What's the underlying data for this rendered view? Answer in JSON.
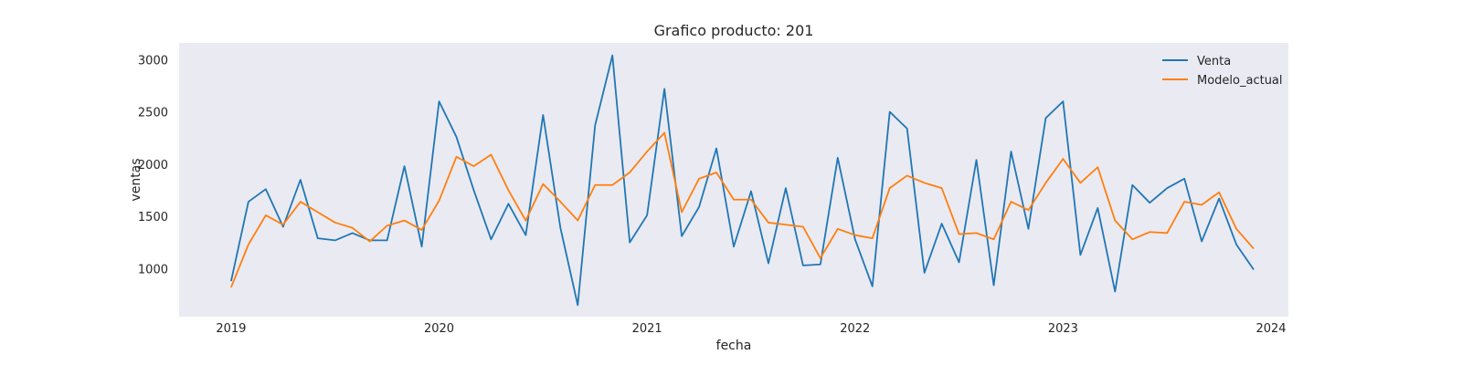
{
  "chart_data": {
    "type": "line",
    "title": "Grafico producto: 201",
    "xlabel": "fecha",
    "ylabel": "ventas",
    "x": [
      "2019-01",
      "2019-02",
      "2019-03",
      "2019-04",
      "2019-05",
      "2019-06",
      "2019-07",
      "2019-08",
      "2019-09",
      "2019-10",
      "2019-11",
      "2019-12",
      "2020-01",
      "2020-02",
      "2020-03",
      "2020-04",
      "2020-05",
      "2020-06",
      "2020-07",
      "2020-08",
      "2020-09",
      "2020-10",
      "2020-11",
      "2020-12",
      "2021-01",
      "2021-02",
      "2021-03",
      "2021-04",
      "2021-05",
      "2021-06",
      "2021-07",
      "2021-08",
      "2021-09",
      "2021-10",
      "2021-11",
      "2021-12",
      "2022-01",
      "2022-02",
      "2022-03",
      "2022-04",
      "2022-05",
      "2022-06",
      "2022-07",
      "2022-08",
      "2022-09",
      "2022-10",
      "2022-11",
      "2022-12",
      "2023-01",
      "2023-02",
      "2023-03",
      "2023-04",
      "2023-05",
      "2023-06",
      "2023-07",
      "2023-08",
      "2023-09",
      "2023-10",
      "2023-11",
      "2023-12"
    ],
    "series": [
      {
        "name": "Venta",
        "color": "#1f77b4",
        "values": [
          880,
          1640,
          1760,
          1400,
          1850,
          1290,
          1270,
          1340,
          1270,
          1270,
          1980,
          1210,
          2600,
          2260,
          1750,
          1280,
          1620,
          1320,
          2470,
          1390,
          650,
          2370,
          3040,
          1250,
          1510,
          2720,
          1310,
          1590,
          2150,
          1210,
          1740,
          1050,
          1770,
          1030,
          1040,
          2060,
          1280,
          830,
          2500,
          2340,
          960,
          1430,
          1060,
          2040,
          840,
          2120,
          1380,
          2440,
          2600,
          1130,
          1580,
          780,
          1800,
          1630,
          1770,
          1860,
          1260,
          1670,
          1230,
          990
        ]
      },
      {
        "name": "Modelo_actual",
        "color": "#ff7f0e",
        "values": [
          820,
          1230,
          1510,
          1420,
          1640,
          1540,
          1440,
          1390,
          1260,
          1410,
          1460,
          1370,
          1650,
          2070,
          1980,
          2090,
          1750,
          1460,
          1810,
          1640,
          1460,
          1800,
          1800,
          1920,
          2120,
          2300,
          1540,
          1860,
          1920,
          1660,
          1660,
          1440,
          1420,
          1400,
          1100,
          1380,
          1320,
          1290,
          1770,
          1890,
          1820,
          1770,
          1330,
          1340,
          1280,
          1640,
          1560,
          1820,
          2050,
          1820,
          1970,
          1460,
          1280,
          1350,
          1340,
          1640,
          1610,
          1730,
          1380,
          1190
        ]
      }
    ],
    "xticks": [
      "2019",
      "2020",
      "2021",
      "2022",
      "2023",
      "2024"
    ],
    "yticks": [
      1000,
      1500,
      2000,
      2500,
      3000
    ],
    "ylim": [
      540,
      3160
    ],
    "xlim": [
      "2018-10",
      "2024-02"
    ],
    "grid": false,
    "legend_position": "top-right",
    "plot_background": "#eaeaf2"
  }
}
